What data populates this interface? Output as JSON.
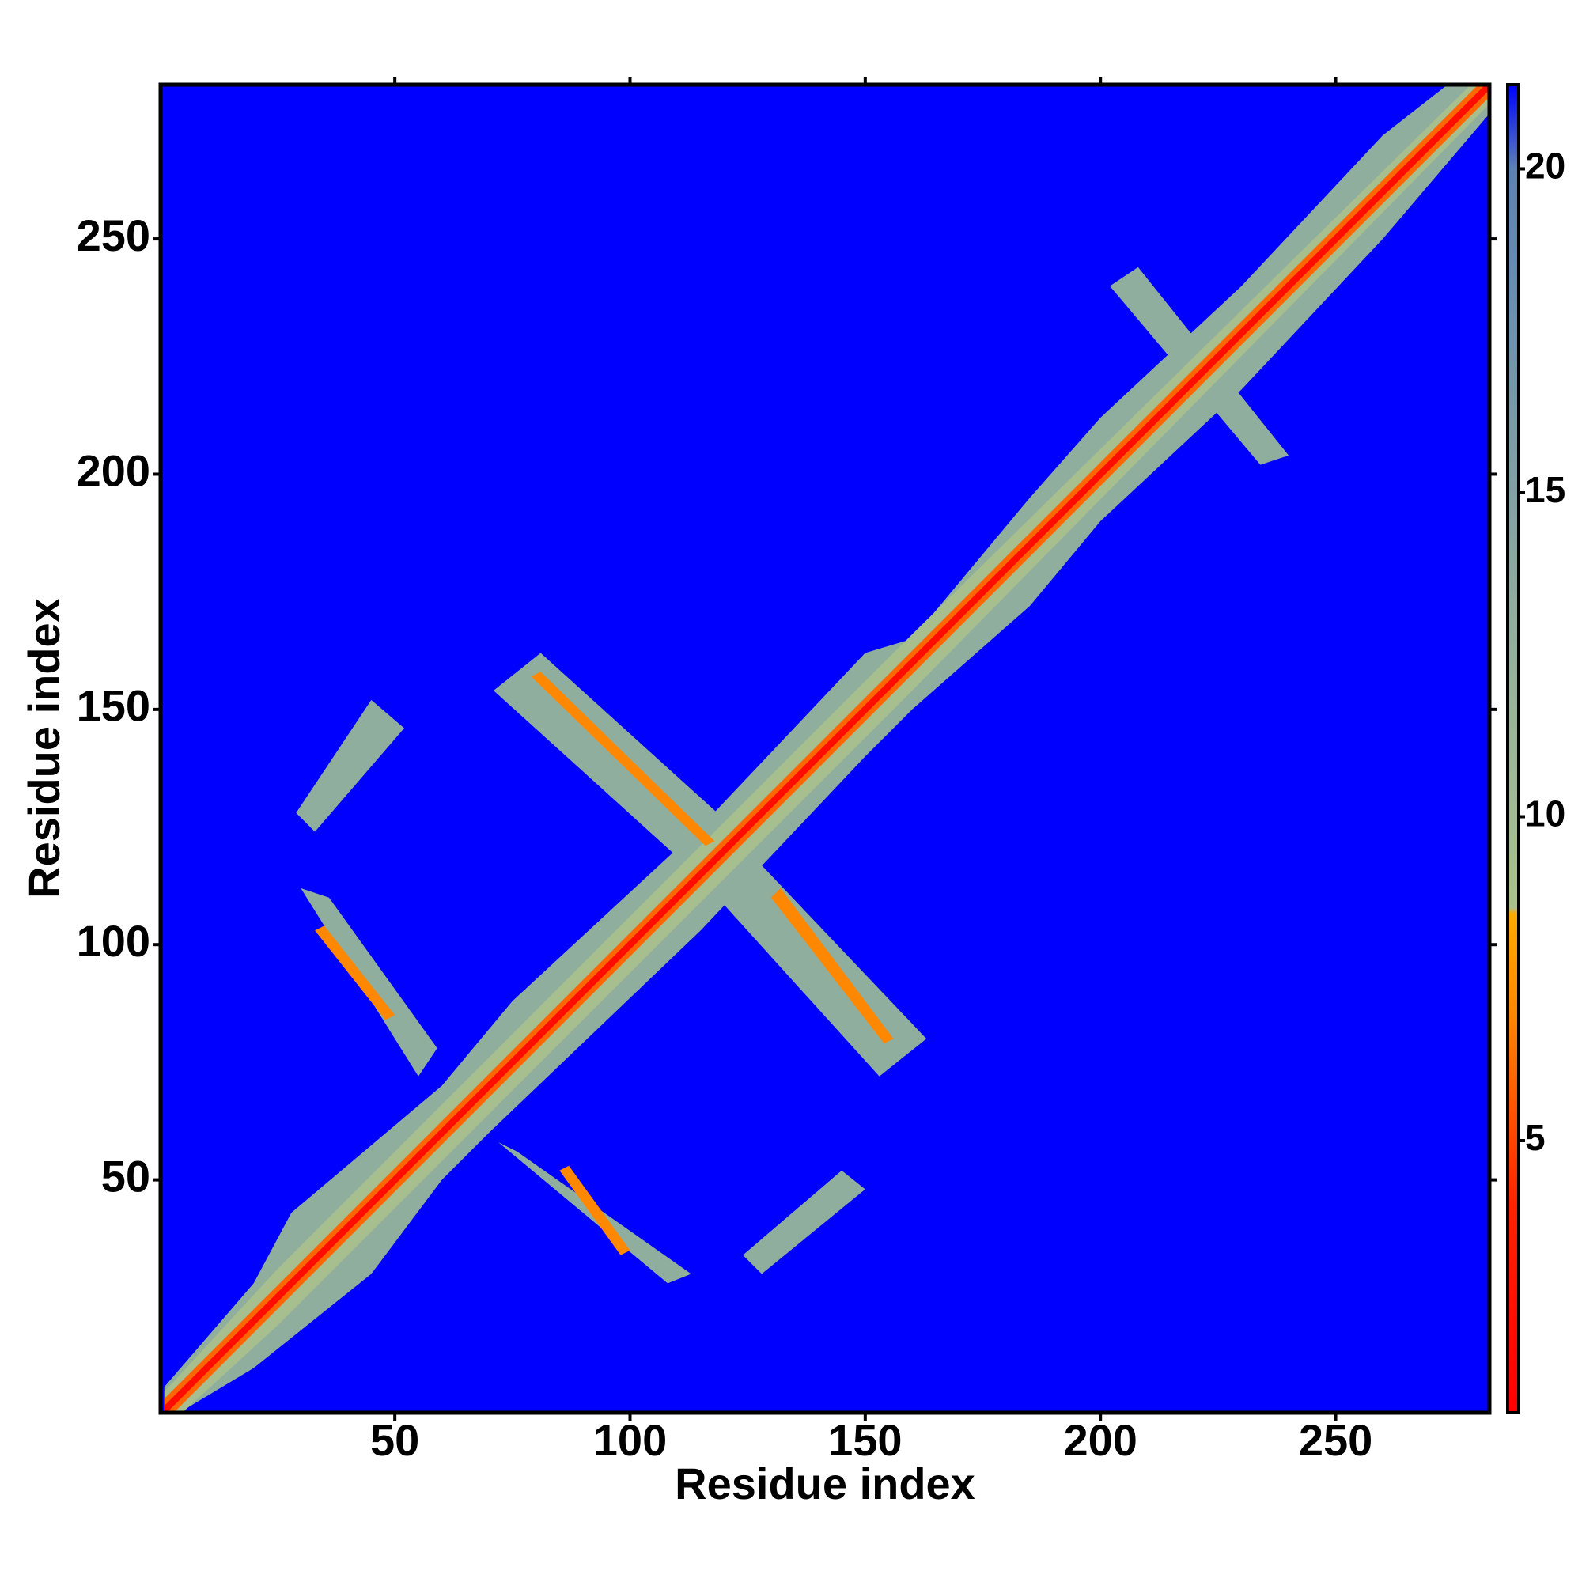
{
  "chart_data": {
    "type": "heatmap",
    "xlabel": "Residue index",
    "ylabel": "Residue index",
    "xlim": [
      0.2,
      282.7
    ],
    "ylim": [
      0.5,
      282.8
    ],
    "xticks": [
      50,
      100,
      150,
      200,
      250
    ],
    "yticks": [
      50,
      100,
      150,
      200,
      250
    ],
    "zlim": [
      0.8,
      21.3
    ],
    "zticks": [
      5,
      10,
      15,
      20
    ],
    "colorscale": [
      {
        "value": 0.8,
        "color": "#ff0000"
      },
      {
        "value": 4,
        "color": "#ff2200"
      },
      {
        "value": 7,
        "color": "#ff8800"
      },
      {
        "value": 8.5,
        "color": "#ffaa00"
      },
      {
        "value": 8.6,
        "color": "#a9c08e"
      },
      {
        "value": 13,
        "color": "#90ae9e"
      },
      {
        "value": 20,
        "color": "#5f80b4"
      },
      {
        "value": 21.3,
        "color": "#0000ff"
      }
    ],
    "background": 21.3,
    "regions": [
      {
        "value": 13,
        "x": [
          1,
          20,
          28,
          60,
          75,
          115,
          150,
          160,
          185,
          200,
          230,
          260,
          283,
          283,
          260,
          230,
          200,
          185,
          160,
          150,
          115,
          70,
          60,
          45,
          20,
          5,
          1
        ],
        "y": [
          6,
          28,
          43,
          70,
          88,
          125,
          162,
          165,
          195,
          212,
          240,
          272,
          290,
          277,
          250,
          218,
          190,
          172,
          150,
          140,
          103,
          60,
          50,
          30,
          10,
          1,
          -4
        ]
      },
      {
        "value": 13,
        "x": [
          71,
          81,
          123,
          113
        ],
        "y": [
          154,
          162,
          124,
          116
        ]
      },
      {
        "value": 13,
        "x": [
          115,
          125,
          163,
          153
        ],
        "y": [
          114,
          120,
          80,
          72
        ]
      },
      {
        "value": 13,
        "x": [
          29,
          33,
          52,
          45
        ],
        "y": [
          128,
          124,
          146,
          152
        ]
      },
      {
        "value": 13,
        "x": [
          30,
          36,
          59,
          55
        ],
        "y": [
          112,
          110,
          78,
          72
        ]
      },
      {
        "value": 13,
        "x": [
          72,
          76,
          113,
          108
        ],
        "y": [
          58,
          56,
          30,
          28
        ]
      },
      {
        "value": 13,
        "x": [
          124,
          128,
          150,
          145
        ],
        "y": [
          34,
          30,
          48,
          52
        ]
      },
      {
        "value": 13,
        "x": [
          202,
          208,
          240,
          234
        ],
        "y": [
          240,
          244,
          204,
          202
        ]
      },
      {
        "value": 9,
        "x": [
          1,
          25,
          160,
          283,
          283,
          160,
          25,
          1
        ],
        "y": [
          5,
          31,
          166,
          287,
          279,
          154,
          19,
          -3
        ]
      },
      {
        "value": 7,
        "x": [
          79,
          81,
          118,
          116
        ],
        "y": [
          157,
          158,
          122,
          121
        ]
      },
      {
        "value": 7,
        "x": [
          130,
          132,
          156,
          154
        ],
        "y": [
          110,
          112,
          80,
          79
        ]
      },
      {
        "value": 7,
        "x": [
          33,
          35,
          50,
          48
        ],
        "y": [
          103,
          104,
          85,
          84
        ]
      },
      {
        "value": 7,
        "x": [
          85,
          87,
          100,
          98
        ],
        "y": [
          52,
          53,
          35,
          34
        ]
      },
      {
        "value": 6,
        "x": [
          1,
          283,
          283,
          1
        ],
        "y": [
          3.5,
          285.5,
          280.5,
          -1.5
        ]
      },
      {
        "value": 2,
        "x": [
          1,
          283,
          283,
          1
        ],
        "y": [
          2,
          284,
          282,
          0
        ]
      }
    ]
  }
}
